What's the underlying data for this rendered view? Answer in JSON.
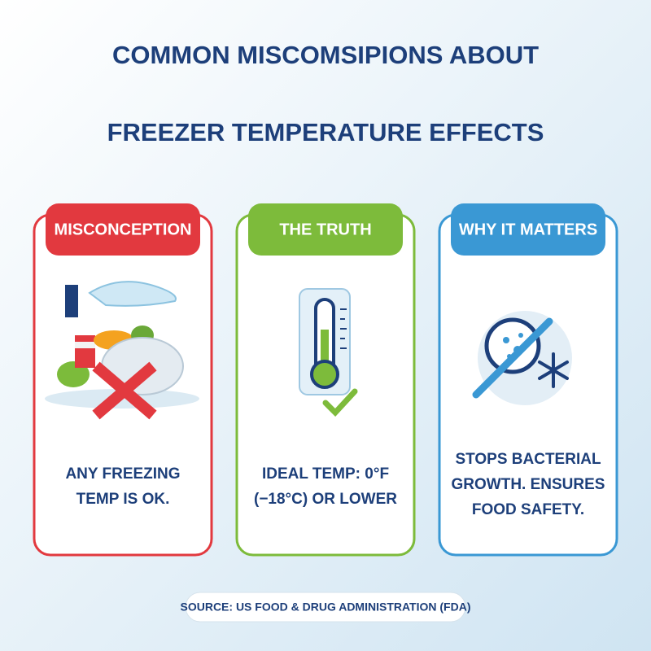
{
  "title": {
    "lines": [
      "COMMON MISCOMSIPIONS ABOUT",
      "FREEZER TEMPERATURE EFFECTS"
    ]
  },
  "cards": [
    {
      "heading": "MISCONCEPTION",
      "body": [
        "ANY FREEZING",
        "TEMP IS OK."
      ],
      "color": "#e2393f"
    },
    {
      "heading": "THE TRUTH",
      "body": [
        "IDEAL TEMP: 0°F",
        "(−18°C) OR LOWER"
      ],
      "color": "#7dbb3b"
    },
    {
      "heading": "WHY IT MATTERS",
      "body": [
        "STOPS BACTERIAL",
        "GROWTH. ENSURES",
        "FOOD SAFETY."
      ],
      "color": "#3a98d4"
    }
  ],
  "source": "SOURCE: US FOOD & DRUG ADMINISTRATION (FDA)"
}
